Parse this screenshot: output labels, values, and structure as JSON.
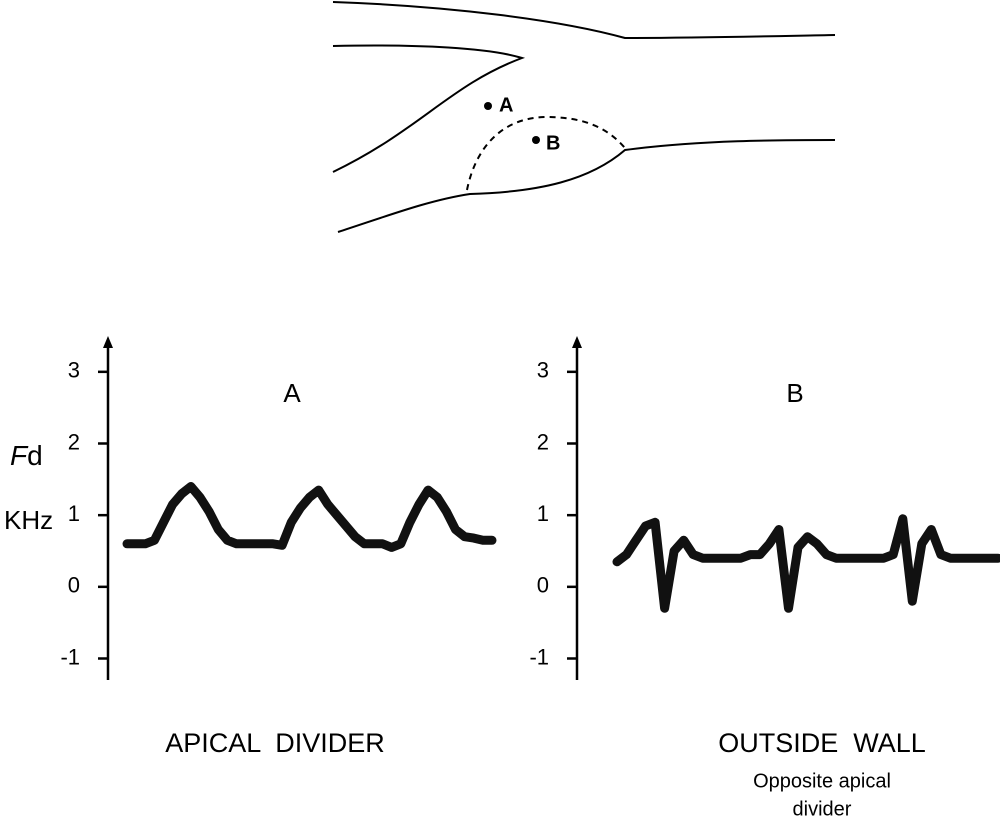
{
  "diagram": {
    "labels": [
      "A",
      "B"
    ]
  },
  "chart_data": [
    {
      "type": "line",
      "title": "A",
      "y_symbol": "F",
      "y_subscript": "d",
      "yunit": "KHz",
      "caption": "APICAL  DIVIDER",
      "ylim": [
        -1.3,
        3.5
      ],
      "yticks": [
        3,
        2,
        1,
        0,
        -1
      ],
      "color": "#111111",
      "values": [
        0.6,
        0.6,
        0.6,
        0.65,
        0.9,
        1.15,
        1.3,
        1.4,
        1.25,
        1.05,
        0.8,
        0.65,
        0.6,
        0.6,
        0.6,
        0.6,
        0.6,
        0.58,
        0.9,
        1.1,
        1.25,
        1.35,
        1.15,
        1.0,
        0.85,
        0.7,
        0.6,
        0.6,
        0.6,
        0.55,
        0.6,
        0.9,
        1.15,
        1.35,
        1.25,
        1.05,
        0.8,
        0.7,
        0.68,
        0.65,
        0.65
      ]
    },
    {
      "type": "line",
      "title": "B",
      "caption": "OUTSIDE  WALL",
      "subcaption": [
        "Opposite apical",
        "divider"
      ],
      "ylim": [
        -1.3,
        3.5
      ],
      "yticks": [
        3,
        2,
        1,
        0,
        -1
      ],
      "color": "#111111",
      "values": [
        0.35,
        0.45,
        0.65,
        0.85,
        0.9,
        -0.3,
        0.5,
        0.65,
        0.45,
        0.4,
        0.4,
        0.4,
        0.4,
        0.4,
        0.45,
        0.45,
        0.6,
        0.8,
        -0.3,
        0.55,
        0.7,
        0.6,
        0.45,
        0.4,
        0.4,
        0.4,
        0.4,
        0.4,
        0.4,
        0.45,
        0.95,
        -0.2,
        0.6,
        0.8,
        0.45,
        0.4,
        0.4,
        0.4,
        0.4,
        0.4,
        0.4
      ]
    }
  ]
}
